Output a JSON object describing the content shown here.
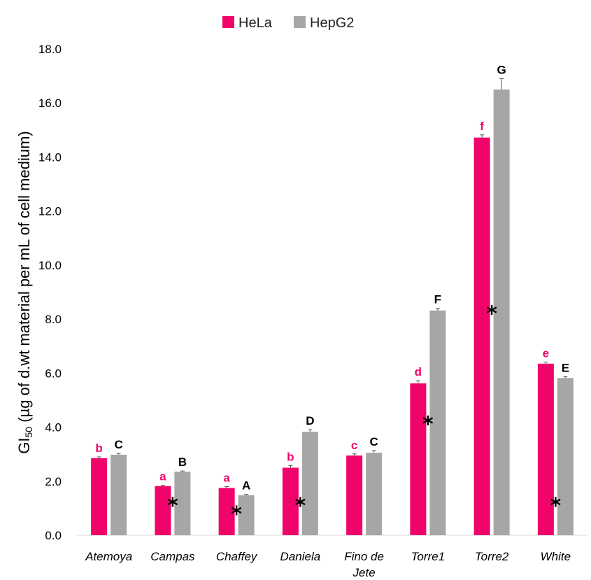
{
  "chart_data": {
    "type": "bar",
    "ylabel_main": "GI",
    "ylabel_sub": "50",
    "ylabel_rest": " (µg of d.wt material per mL of cell medium)",
    "ylim": [
      0,
      18
    ],
    "yticks": [
      "0.0",
      "2.0",
      "4.0",
      "6.0",
      "8.0",
      "10.0",
      "12.0",
      "14.0",
      "16.0",
      "18.0"
    ],
    "grid": false,
    "legend_position": "top-center",
    "categories": [
      "Atemoya",
      "Campas",
      "Chaffey",
      "Daniela",
      "Fino de Jete",
      "Torre1",
      "Torre2",
      "White"
    ],
    "category_lines": [
      [
        "Atemoya"
      ],
      [
        "Campas"
      ],
      [
        "Chaffey"
      ],
      [
        "Daniela"
      ],
      [
        "Fino de",
        "Jete"
      ],
      [
        "Torre1"
      ],
      [
        "Torre2"
      ],
      [
        "White"
      ]
    ],
    "series": [
      {
        "name": "HeLa",
        "color": "#f0046a",
        "values": [
          2.85,
          1.82,
          1.75,
          2.5,
          2.95,
          5.62,
          14.72,
          6.35
        ],
        "errors": [
          0.05,
          0.03,
          0.05,
          0.08,
          0.06,
          0.1,
          0.1,
          0.06
        ],
        "letters": [
          "b",
          "a",
          "a",
          "b",
          "c",
          "d",
          "f",
          "e"
        ]
      },
      {
        "name": "HepG2",
        "color": "#a6a6a6",
        "values": [
          2.98,
          2.35,
          1.48,
          3.83,
          3.05,
          8.32,
          16.5,
          5.82
        ],
        "errors": [
          0.05,
          0.03,
          0.03,
          0.08,
          0.08,
          0.08,
          0.4,
          0.05
        ],
        "letters": [
          "C",
          "B",
          "A",
          "D",
          "C",
          "F",
          "G",
          "E"
        ]
      }
    ],
    "significance_marks": [
      "",
      "*",
      "*",
      "*",
      "",
      "*",
      "*",
      "*"
    ]
  }
}
